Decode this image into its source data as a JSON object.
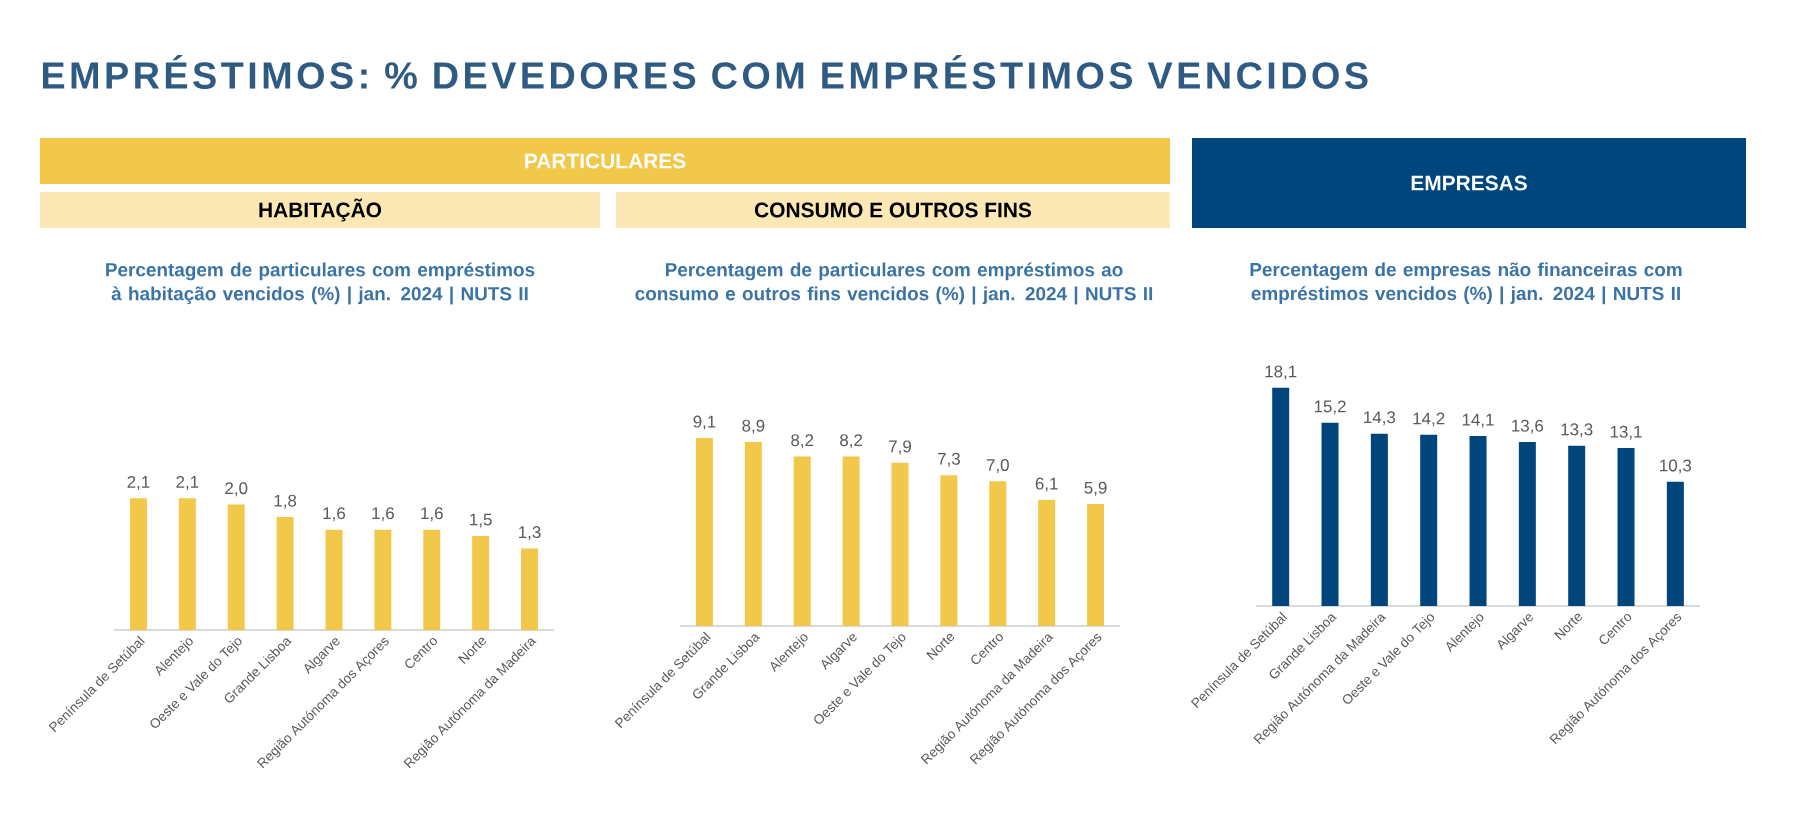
{
  "chart_data": [
    {
      "type": "bar",
      "title": "Percentagem de particulares com empréstimos à habitação vencidos (%) | jan. 2024 | NUTS II",
      "subtitle": "HABITAÇÃO",
      "annotations": [
        "EMPRÉSTIMOS: % DEVEDORES COM EMPRÉSTIMOS VENCIDOS",
        "PARTICULARES"
      ],
      "categories": [
        "Península de Setúbal",
        "Alentejo",
        "Oeste e Vale do Tejo",
        "Grande Lisboa",
        "Algarve",
        "Região Autónoma dos Açores",
        "Centro",
        "Norte",
        "Região Autónoma da Madeira"
      ],
      "values": [
        2.1,
        2.1,
        2.0,
        1.8,
        1.6,
        1.6,
        1.6,
        1.5,
        1.3
      ],
      "value_labels": [
        "2,1",
        "2,1",
        "2,0",
        "1,8",
        "1,6",
        "1,6",
        "1,6",
        "1,5",
        "1,3"
      ],
      "color": "#f2c84b"
    },
    {
      "type": "bar",
      "title": "Percentagem de particulares com empréstimos ao consumo e outros fins vencidos (%) | jan. 2024 | NUTS II",
      "subtitle": "CONSUMO E OUTROS FINS",
      "categories": [
        "Península de Setúbal",
        "Grande Lisboa",
        "Alentejo",
        "Algarve",
        "Oeste e Vale do Tejo",
        "Norte",
        "Centro",
        "Região Autónoma da Madeira",
        "Região Autónoma dos Açores"
      ],
      "values": [
        9.1,
        8.9,
        8.2,
        8.2,
        7.9,
        7.3,
        7.0,
        6.1,
        5.9
      ],
      "value_labels": [
        "9,1",
        "8,9",
        "8,2",
        "8,2",
        "7,9",
        "7,3",
        "7,0",
        "6,1",
        "5,9"
      ],
      "color": "#f2c84b"
    },
    {
      "type": "bar",
      "title": "Percentagem de empresas não financeiras com empréstimos vencidos (%) | jan. 2024 | NUTS II",
      "subtitle": "EMPRESAS",
      "categories": [
        "Península de Setúbal",
        "Grande Lisboa",
        "Região Autónoma da Madeira",
        "Oeste e Vale do Tejo",
        "Alentejo",
        "Algarve",
        "Norte",
        "Centro",
        "Região Autónoma dos Açores"
      ],
      "values": [
        18.1,
        15.2,
        14.3,
        14.2,
        14.1,
        13.6,
        13.3,
        13.1,
        10.3
      ],
      "value_labels": [
        "18,1",
        "15,2",
        "14,3",
        "14,2",
        "14,1",
        "13,6",
        "13,3",
        "13,1",
        "10,3"
      ],
      "color": "#00457c"
    }
  ]
}
